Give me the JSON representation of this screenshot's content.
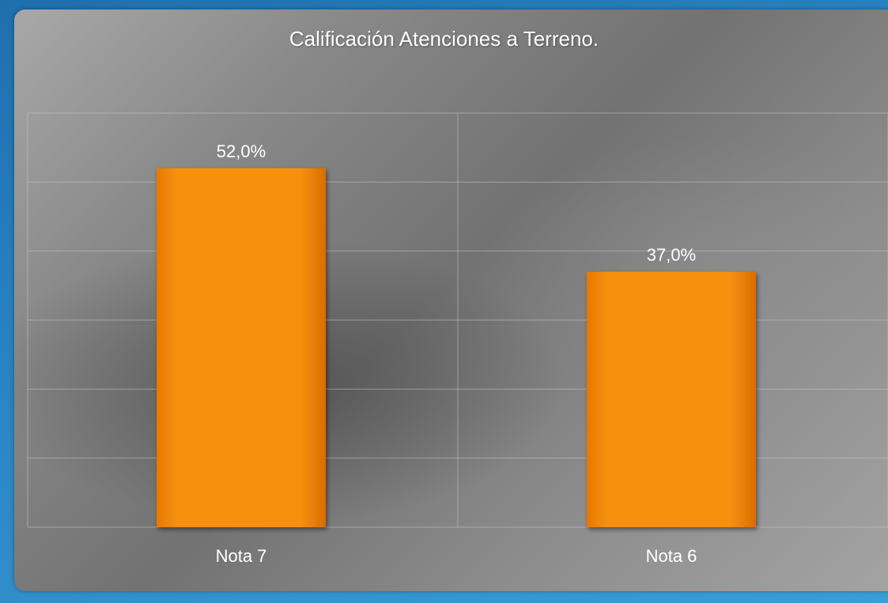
{
  "chart_data": {
    "type": "bar",
    "title": "Calificación Atenciones a Terreno.",
    "categories": [
      "Nota 7",
      "Nota 6"
    ],
    "values": [
      52.0,
      37.0
    ],
    "data_labels": [
      "52,0%",
      "37,0%"
    ],
    "ylim": [
      0,
      60
    ],
    "grid": true,
    "bar_color": "#f58a0c"
  }
}
